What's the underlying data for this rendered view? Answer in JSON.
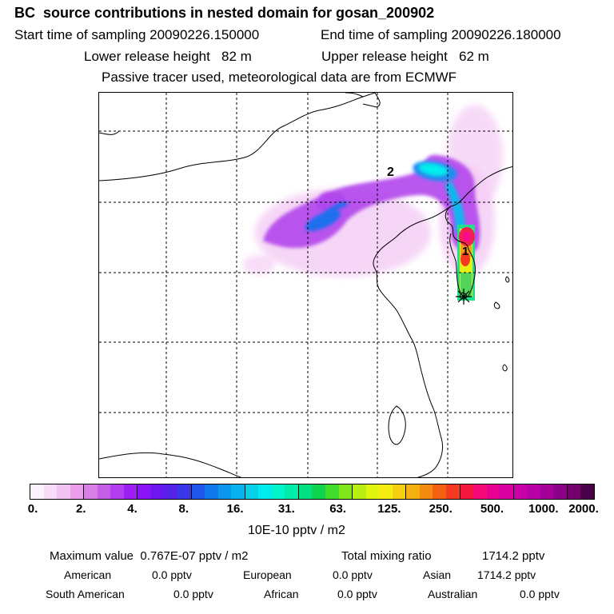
{
  "header": {
    "title": "BC  source contributions in nested domain for gosan_200902",
    "start_label": "Start time of sampling 20090226.150000",
    "end_label": "End time of sampling 20090226.180000",
    "lower_label": "Lower release height   82 m",
    "upper_label": "Upper release height   62 m",
    "tracer_note": "Passive tracer used, meteorological data are from ECMWF"
  },
  "map": {
    "label_1": "1",
    "label_2": "2"
  },
  "colorbar": {
    "colors": [
      "#fdf3fd",
      "#f8dcf8",
      "#f2c2f2",
      "#ea9eea",
      "#d97ee8",
      "#c65ee8",
      "#b23ef0",
      "#9d1ff5",
      "#8a14f5",
      "#6e16f0",
      "#5523e8",
      "#3a38e6",
      "#1f55e8",
      "#0f78ea",
      "#0a96ec",
      "#08b2ee",
      "#06cfe8",
      "#00ecec",
      "#00f5cc",
      "#00ecaa",
      "#00e080",
      "#10d450",
      "#40dd2a",
      "#80e61a",
      "#b8ee10",
      "#e0f510",
      "#f5ec10",
      "#f5d010",
      "#f5b010",
      "#f58a10",
      "#f56010",
      "#f53a20",
      "#f51840",
      "#f50a78",
      "#e80090",
      "#d800a0",
      "#c800a8",
      "#b800a6",
      "#a40098",
      "#8c0088",
      "#740070",
      "#4a0048"
    ],
    "tick_labels": [
      "0.",
      "2.",
      "4.",
      "8.",
      "16.",
      "31.",
      "63.",
      "125.",
      "250.",
      "500.",
      "1000.",
      "2000."
    ],
    "unit": "10E-10 pptv / m2"
  },
  "chart_data": {
    "type": "heatmap",
    "title": "BC  source contributions in nested domain for gosan_200902",
    "colorbar_levels": [
      0,
      2,
      4,
      8,
      16,
      31,
      63,
      125,
      250,
      500,
      1000,
      2000
    ],
    "colorbar_unit": "10E-10 pptv / m2",
    "receptor": "gosan",
    "maximum_value": "0.767E-07 pptv / m2",
    "total_mixing_ratio_pptv": 1714.2,
    "contributions_pptv": {
      "American": 0.0,
      "European": 0.0,
      "Asian": 1714.2,
      "South American": 0.0,
      "African": 0.0,
      "Australian": 0.0
    }
  },
  "summary": {
    "max_label": "Maximum value  0.767E-07 pptv / m2",
    "total_label": "Total mixing ratio",
    "total_value": "1714.2 pptv",
    "regions": [
      {
        "name": "American",
        "value": "0.0 pptv"
      },
      {
        "name": "European",
        "value": "0.0 pptv"
      },
      {
        "name": "Asian",
        "value": "1714.2 pptv"
      },
      {
        "name": "South American",
        "value": "0.0 pptv"
      },
      {
        "name": "African",
        "value": "0.0 pptv"
      },
      {
        "name": "Australian",
        "value": "0.0 pptv"
      }
    ]
  }
}
